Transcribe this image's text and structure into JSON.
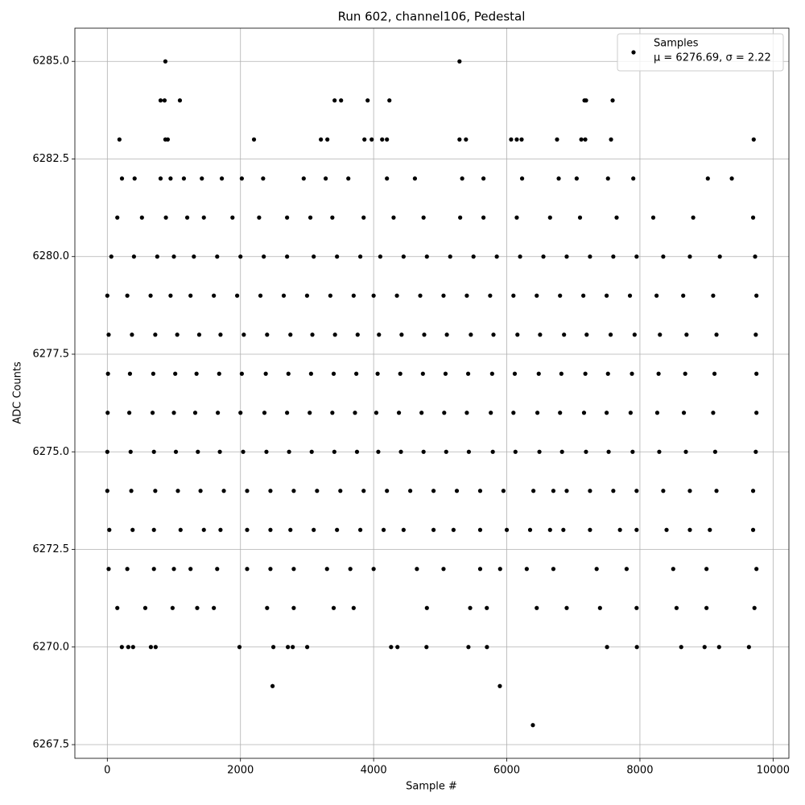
{
  "chart_data": {
    "type": "scatter",
    "title": "Run 602, channel106, Pedestal",
    "x_label": "Sample #",
    "y_label": "ADC Counts",
    "xlim": [
      -487.5,
      10237.5
    ],
    "ylim": [
      6267.15,
      6285.85
    ],
    "xticks": [
      0,
      2000,
      4000,
      6000,
      8000,
      10000
    ],
    "yticks": [
      {
        "value": 6267.5,
        "label": "6267.5"
      },
      {
        "value": 6270,
        "label": "6270.0"
      },
      {
        "value": 6272.5,
        "label": "6272.5"
      },
      {
        "value": 6275,
        "label": "6275.0"
      },
      {
        "value": 6277.5,
        "label": "6277.5"
      },
      {
        "value": 6280,
        "label": "6280.0"
      },
      {
        "value": 6282.5,
        "label": "6282.5"
      },
      {
        "value": 6285,
        "label": "6285.0"
      }
    ],
    "grid": true,
    "legend": "upper right",
    "annotations": [
      "μ = 6276.69, σ = 2.22"
    ],
    "series": [
      {
        "name": "Samples",
        "color": "#000000",
        "x": [
          872,
          5290,
          800,
          860,
          1090,
          3414,
          3511,
          3910,
          4237,
          7167,
          7191,
          7590,
          182,
          872,
          908,
          2203,
          3208,
          3305,
          3862,
          3971,
          4128,
          4200,
          5290,
          5387,
          6065,
          6150,
          6223,
          6755,
          7119,
          7179,
          7566,
          9709,
          2482,
          5896,
          6392,
          218,
          315,
          387,
          654,
          726,
          1985,
          2494,
          2712,
          2785,
          3002,
          4262,
          4358,
          4794,
          5424,
          5702,
          7506,
          7954,
          8620,
          8971,
          9189,
          9637,
          220,
          410,
          800,
          950,
          1150,
          1420,
          1720,
          2020,
          2340,
          2950,
          3280,
          3620,
          4200,
          4620,
          5330,
          5650,
          6230,
          6780,
          7050,
          7520,
          7900,
          9020,
          9380,
          150,
          520,
          880,
          1200,
          1450,
          1880,
          2280,
          2700,
          3050,
          3380,
          3850,
          4300,
          4750,
          5300,
          5650,
          6150,
          6650,
          7100,
          7650,
          8200,
          8800,
          9700,
          60,
          400,
          750,
          1000,
          1300,
          1650,
          2000,
          2350,
          2700,
          3100,
          3450,
          3800,
          4100,
          4450,
          4800,
          5150,
          5500,
          5850,
          6200,
          6550,
          6900,
          7250,
          7600,
          7950,
          8350,
          8750,
          9200,
          9730,
          0,
          300,
          650,
          950,
          1250,
          1600,
          1950,
          2300,
          2650,
          3000,
          3350,
          3700,
          4000,
          4350,
          4700,
          5050,
          5400,
          5750,
          6100,
          6450,
          6800,
          7150,
          7500,
          7850,
          8250,
          8650,
          9100,
          9750,
          20,
          370,
          720,
          1050,
          1380,
          1700,
          2050,
          2400,
          2750,
          3080,
          3420,
          3760,
          4080,
          4420,
          4760,
          5100,
          5460,
          5800,
          6160,
          6500,
          6860,
          7200,
          7560,
          7920,
          8300,
          8700,
          9150,
          9740,
          10,
          340,
          690,
          1020,
          1340,
          1680,
          2020,
          2380,
          2720,
          3060,
          3400,
          3740,
          4060,
          4400,
          4740,
          5080,
          5420,
          5780,
          6120,
          6480,
          6820,
          7180,
          7520,
          7880,
          8280,
          8680,
          9120,
          9750,
          5,
          330,
          680,
          1000,
          1320,
          1660,
          2000,
          2360,
          2700,
          3040,
          3380,
          3720,
          4040,
          4380,
          4720,
          5060,
          5400,
          5760,
          6100,
          6460,
          6800,
          7160,
          7500,
          7860,
          8260,
          8660,
          9100,
          9750,
          0,
          350,
          700,
          1030,
          1360,
          1690,
          2040,
          2390,
          2730,
          3070,
          3410,
          3750,
          4070,
          4410,
          4750,
          5090,
          5430,
          5790,
          6130,
          6490,
          6830,
          7190,
          7530,
          7890,
          8290,
          8690,
          9130,
          9740,
          0,
          360,
          720,
          1060,
          1400,
          1750,
          2100,
          2450,
          2800,
          3150,
          3500,
          3850,
          4200,
          4550,
          4900,
          5250,
          5600,
          5950,
          6400,
          6700,
          6900,
          7250,
          7600,
          7950,
          8350,
          8750,
          9150,
          9700,
          30,
          380,
          700,
          1100,
          1450,
          1700,
          2100,
          2450,
          2750,
          3100,
          3450,
          3800,
          4150,
          4450,
          4900,
          5200,
          5600,
          6000,
          6350,
          6650,
          6850,
          7250,
          7700,
          7950,
          8400,
          8750,
          9050,
          9700,
          20,
          300,
          700,
          1000,
          1250,
          1650,
          2100,
          2450,
          2800,
          3300,
          3650,
          4000,
          4650,
          5050,
          5600,
          5900,
          6300,
          6700,
          7350,
          7800,
          8500,
          9000,
          9750,
          150,
          570,
          980,
          1350,
          1600,
          2400,
          2800,
          3400,
          3700,
          4800,
          5450,
          5700,
          6450,
          6900,
          7400,
          7950,
          8550,
          9000,
          9720
        ],
        "values": [
          6285,
          6285,
          6284,
          6284,
          6284,
          6284,
          6284,
          6284,
          6284,
          6284,
          6284,
          6284,
          6283,
          6283,
          6283,
          6283,
          6283,
          6283,
          6283,
          6283,
          6283,
          6283,
          6283,
          6283,
          6283,
          6283,
          6283,
          6283,
          6283,
          6283,
          6283,
          6283,
          6269,
          6269,
          6268,
          6270,
          6270,
          6270,
          6270,
          6270,
          6270,
          6270,
          6270,
          6270,
          6270,
          6270,
          6270,
          6270,
          6270,
          6270,
          6270,
          6270,
          6270,
          6270,
          6270,
          6270,
          6282,
          6282,
          6282,
          6282,
          6282,
          6282,
          6282,
          6282,
          6282,
          6282,
          6282,
          6282,
          6282,
          6282,
          6282,
          6282,
          6282,
          6282,
          6282,
          6282,
          6282,
          6282,
          6282,
          6281,
          6281,
          6281,
          6281,
          6281,
          6281,
          6281,
          6281,
          6281,
          6281,
          6281,
          6281,
          6281,
          6281,
          6281,
          6281,
          6281,
          6281,
          6281,
          6281,
          6281,
          6281,
          6280,
          6280,
          6280,
          6280,
          6280,
          6280,
          6280,
          6280,
          6280,
          6280,
          6280,
          6280,
          6280,
          6280,
          6280,
          6280,
          6280,
          6280,
          6280,
          6280,
          6280,
          6280,
          6280,
          6280,
          6280,
          6280,
          6280,
          6280,
          6279,
          6279,
          6279,
          6279,
          6279,
          6279,
          6279,
          6279,
          6279,
          6279,
          6279,
          6279,
          6279,
          6279,
          6279,
          6279,
          6279,
          6279,
          6279,
          6279,
          6279,
          6279,
          6279,
          6279,
          6279,
          6279,
          6279,
          6279,
          6278,
          6278,
          6278,
          6278,
          6278,
          6278,
          6278,
          6278,
          6278,
          6278,
          6278,
          6278,
          6278,
          6278,
          6278,
          6278,
          6278,
          6278,
          6278,
          6278,
          6278,
          6278,
          6278,
          6278,
          6278,
          6278,
          6278,
          6278,
          6277,
          6277,
          6277,
          6277,
          6277,
          6277,
          6277,
          6277,
          6277,
          6277,
          6277,
          6277,
          6277,
          6277,
          6277,
          6277,
          6277,
          6277,
          6277,
          6277,
          6277,
          6277,
          6277,
          6277,
          6277,
          6277,
          6277,
          6277,
          6276,
          6276,
          6276,
          6276,
          6276,
          6276,
          6276,
          6276,
          6276,
          6276,
          6276,
          6276,
          6276,
          6276,
          6276,
          6276,
          6276,
          6276,
          6276,
          6276,
          6276,
          6276,
          6276,
          6276,
          6276,
          6276,
          6276,
          6276,
          6275,
          6275,
          6275,
          6275,
          6275,
          6275,
          6275,
          6275,
          6275,
          6275,
          6275,
          6275,
          6275,
          6275,
          6275,
          6275,
          6275,
          6275,
          6275,
          6275,
          6275,
          6275,
          6275,
          6275,
          6275,
          6275,
          6275,
          6275,
          6274,
          6274,
          6274,
          6274,
          6274,
          6274,
          6274,
          6274,
          6274,
          6274,
          6274,
          6274,
          6274,
          6274,
          6274,
          6274,
          6274,
          6274,
          6274,
          6274,
          6274,
          6274,
          6274,
          6274,
          6274,
          6274,
          6274,
          6274,
          6273,
          6273,
          6273,
          6273,
          6273,
          6273,
          6273,
          6273,
          6273,
          6273,
          6273,
          6273,
          6273,
          6273,
          6273,
          6273,
          6273,
          6273,
          6273,
          6273,
          6273,
          6273,
          6273,
          6273,
          6273,
          6273,
          6273,
          6273,
          6272,
          6272,
          6272,
          6272,
          6272,
          6272,
          6272,
          6272,
          6272,
          6272,
          6272,
          6272,
          6272,
          6272,
          6272,
          6272,
          6272,
          6272,
          6272,
          6272,
          6272,
          6272,
          6272,
          6271,
          6271,
          6271,
          6271,
          6271,
          6271,
          6271,
          6271,
          6271,
          6271,
          6271,
          6271,
          6271,
          6271,
          6271,
          6271,
          6271,
          6271,
          6271
        ]
      }
    ]
  }
}
